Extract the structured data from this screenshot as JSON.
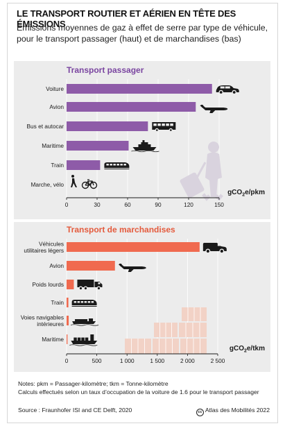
{
  "header": {
    "title": "LE TRANSPORT ROUTIER ET AÉRIEN EN TÊTE DES ÉMISSIONS",
    "subtitle_line1": "Émissions moyennes de gaz à effet de serre par type de véhicule,",
    "subtitle_line2": "pour le transport passager (haut) et de marchandises (bas)"
  },
  "colors": {
    "passenger_bar": "#8e5ba8",
    "passenger_title": "#7a45a0",
    "freight_bar": "#f06a4f",
    "freight_title": "#e45a3c",
    "panel_bg": "#ececec",
    "icon": "#1a1a1a",
    "illustration_passenger": "#d9d3de",
    "illustration_freight": "#f2d2c6"
  },
  "chart_data": [
    {
      "type": "bar",
      "orientation": "horizontal",
      "title": "Transport passager",
      "categories": [
        "Voiture",
        "Avion",
        "Bus et autocar",
        "Maritime",
        "Train",
        "Marche, vélo"
      ],
      "values": [
        143,
        127,
        80,
        61,
        33,
        0
      ],
      "icons": [
        "car-icon",
        "plane-icon",
        "bus-icon",
        "ship-icon",
        "train-icon",
        "walk-bike-icon"
      ],
      "xlim": [
        0,
        150
      ],
      "xticks": [
        0,
        30,
        60,
        90,
        120,
        150
      ],
      "xticklabels": [
        "0",
        "30",
        "60",
        "90",
        "120",
        "150"
      ],
      "unit_label": "gCO",
      "unit_sub": "2",
      "unit_suffix": "e/pkm",
      "grid": true
    },
    {
      "type": "bar",
      "orientation": "horizontal",
      "title": "Transport de marchandises",
      "categories": [
        [
          "Véhicules",
          "utilitaires légers"
        ],
        [
          "Avion"
        ],
        [
          "Poids lourds"
        ],
        [
          "Train"
        ],
        [
          "Voies navigables",
          "intérieures"
        ],
        [
          "Maritime"
        ]
      ],
      "values": [
        2200,
        800,
        120,
        30,
        35,
        15
      ],
      "icons": [
        "van-icon",
        "plane-icon",
        "truck-icon",
        "train-icon",
        "barge-icon",
        "container-ship-icon"
      ],
      "xlim": [
        0,
        2500
      ],
      "xticks": [
        0,
        500,
        1000,
        1500,
        2000,
        2500
      ],
      "xticklabels": [
        "0",
        "500",
        "1 000",
        "1 500",
        "2 000",
        "2 500"
      ],
      "unit_label": "gCO",
      "unit_sub": "2",
      "unit_suffix": "e/tkm",
      "grid": true
    }
  ],
  "footer": {
    "notes_line1": "Notes: pkm = Passager-kilomètre; tkm = Tonne-kilomètre",
    "notes_line2": "Calculs effectués selon un taux d’occupation de la voiture de 1.6 pour le transport passager",
    "source": "Source : Fraunhofer ISI and CE Delft, 2020",
    "credit_symbol": "cc",
    "credit": "Atlas des Mobilités 2022"
  }
}
